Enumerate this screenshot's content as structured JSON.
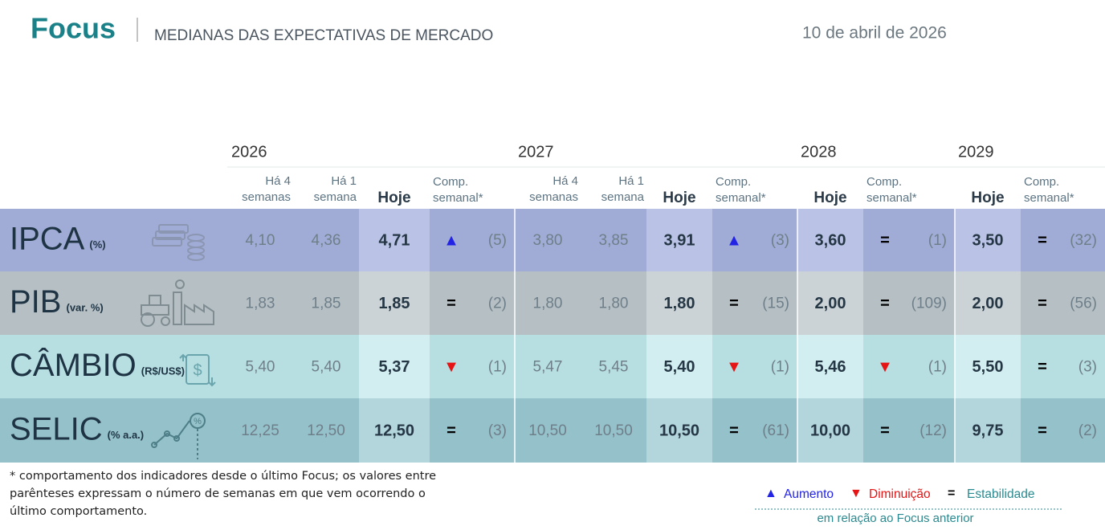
{
  "header": {
    "brand": "Focus",
    "title": "MEDIANAS DAS EXPECTATIVAS DE MERCADO",
    "date": "10 de abril de 2026"
  },
  "years": [
    "2026",
    "2027",
    "2028",
    "2029"
  ],
  "column_headers": {
    "ha4": [
      "Há 4",
      "semanas"
    ],
    "ha1": [
      "Há 1",
      "semana"
    ],
    "hoje": "Hoje",
    "comp": [
      "Comp.",
      "semanal*"
    ]
  },
  "legend": {
    "items": [
      {
        "symbol": "▲",
        "label": "Aumento",
        "symbol_color": "#2323e6",
        "label_color": "#2323e6"
      },
      {
        "symbol": "▼",
        "label": "Diminuição",
        "symbol_color": "#e61414",
        "label_color": "#e61414"
      },
      {
        "symbol": "=",
        "label": "Estabilidade",
        "symbol_color": "#000000",
        "label_color": "#2a8a8f"
      }
    ],
    "note": "em relação ao Focus anterior"
  },
  "footnote": [
    "* comportamento dos indicadores desde o último Focus; os valores entre",
    "parênteses expressam o número de semanas em que vem ocorrendo o",
    "último comportamento."
  ],
  "rows": [
    {
      "name": "IPCA",
      "unit": "(%)",
      "color": "#a1acd6",
      "highlight": "#bac3e6",
      "icon_color": "#8b96b3",
      "years": [
        {
          "ha4": "4,10",
          "ha1": "4,36",
          "hoje": "4,71",
          "trend": 0,
          "count": "(5)"
        },
        {
          "ha4": "3,80",
          "ha1": "3,85",
          "hoje": "3,91",
          "trend": 0,
          "count": "(3)"
        },
        {
          "hoje": "3,60",
          "trend": 2,
          "count": "(1)"
        },
        {
          "hoje": "3,50",
          "trend": 2,
          "count": "(32)"
        }
      ]
    },
    {
      "name": "PIB",
      "unit": "(var. %)",
      "color": "#b6c0c4",
      "highlight": "#cbd3d6",
      "icon_color": "#7f8d93",
      "years": [
        {
          "ha4": "1,83",
          "ha1": "1,85",
          "hoje": "1,85",
          "trend": 2,
          "count": "(2)"
        },
        {
          "ha4": "1,80",
          "ha1": "1,80",
          "hoje": "1,80",
          "trend": 2,
          "count": "(15)"
        },
        {
          "hoje": "2,00",
          "trend": 2,
          "count": "(109)"
        },
        {
          "hoje": "2,00",
          "trend": 2,
          "count": "(56)"
        }
      ]
    },
    {
      "name": "CÂMBIO",
      "unit": "(R$/US$)",
      "color": "#b7dfe2",
      "highlight": "#d2eef0",
      "icon_color": "#6aa5ad",
      "years": [
        {
          "ha4": "5,40",
          "ha1": "5,40",
          "hoje": "5,37",
          "trend": 1,
          "count": "(1)"
        },
        {
          "ha4": "5,47",
          "ha1": "5,45",
          "hoje": "5,40",
          "trend": 1,
          "count": "(1)"
        },
        {
          "hoje": "5,46",
          "trend": 1,
          "count": "(1)"
        },
        {
          "hoje": "5,50",
          "trend": 2,
          "count": "(3)"
        }
      ]
    },
    {
      "name": "SELIC",
      "unit": "(% a.a.)",
      "color": "#95c1ca",
      "highlight": "#b3d5dc",
      "icon_color": "#4e7f88",
      "years": [
        {
          "ha4": "12,25",
          "ha1": "12,50",
          "hoje": "12,50",
          "trend": 2,
          "count": "(3)"
        },
        {
          "ha4": "10,50",
          "ha1": "10,50",
          "hoje": "10,50",
          "trend": 2,
          "count": "(61)"
        },
        {
          "hoje": "10,00",
          "trend": 2,
          "count": "(12)"
        },
        {
          "hoje": "9,75",
          "trend": 2,
          "count": "(2)"
        }
      ]
    }
  ]
}
